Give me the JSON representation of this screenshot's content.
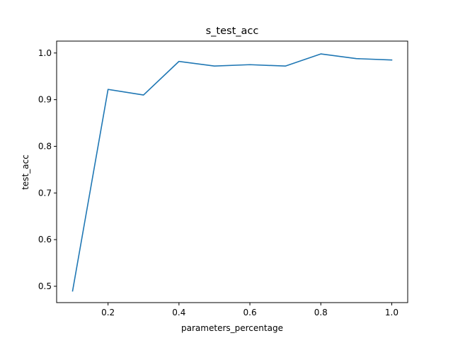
{
  "chart_data": {
    "type": "line",
    "title": "s_test_acc",
    "xlabel": "parameters_percentage",
    "ylabel": "test_acc",
    "xlim": [
      0.055,
      1.045
    ],
    "ylim": [
      0.465,
      1.0255
    ],
    "xticks": [
      0.2,
      0.4,
      0.6,
      0.8,
      1.0
    ],
    "xtick_labels": [
      "0.2",
      "0.4",
      "0.6",
      "0.8",
      "1.0"
    ],
    "yticks": [
      0.5,
      0.6,
      0.7,
      0.8,
      0.9,
      1.0
    ],
    "ytick_labels": [
      "0.5",
      "0.6",
      "0.7",
      "0.8",
      "0.9",
      "1.0"
    ],
    "grid": false,
    "legend": "none",
    "series": [
      {
        "color": "#1f77b4",
        "x": [
          0.1,
          0.2,
          0.3,
          0.4,
          0.5,
          0.6,
          0.7,
          0.8,
          0.9,
          1.0
        ],
        "y": [
          0.49,
          0.922,
          0.91,
          0.982,
          0.972,
          0.975,
          0.972,
          0.998,
          0.988,
          0.985
        ]
      }
    ]
  }
}
